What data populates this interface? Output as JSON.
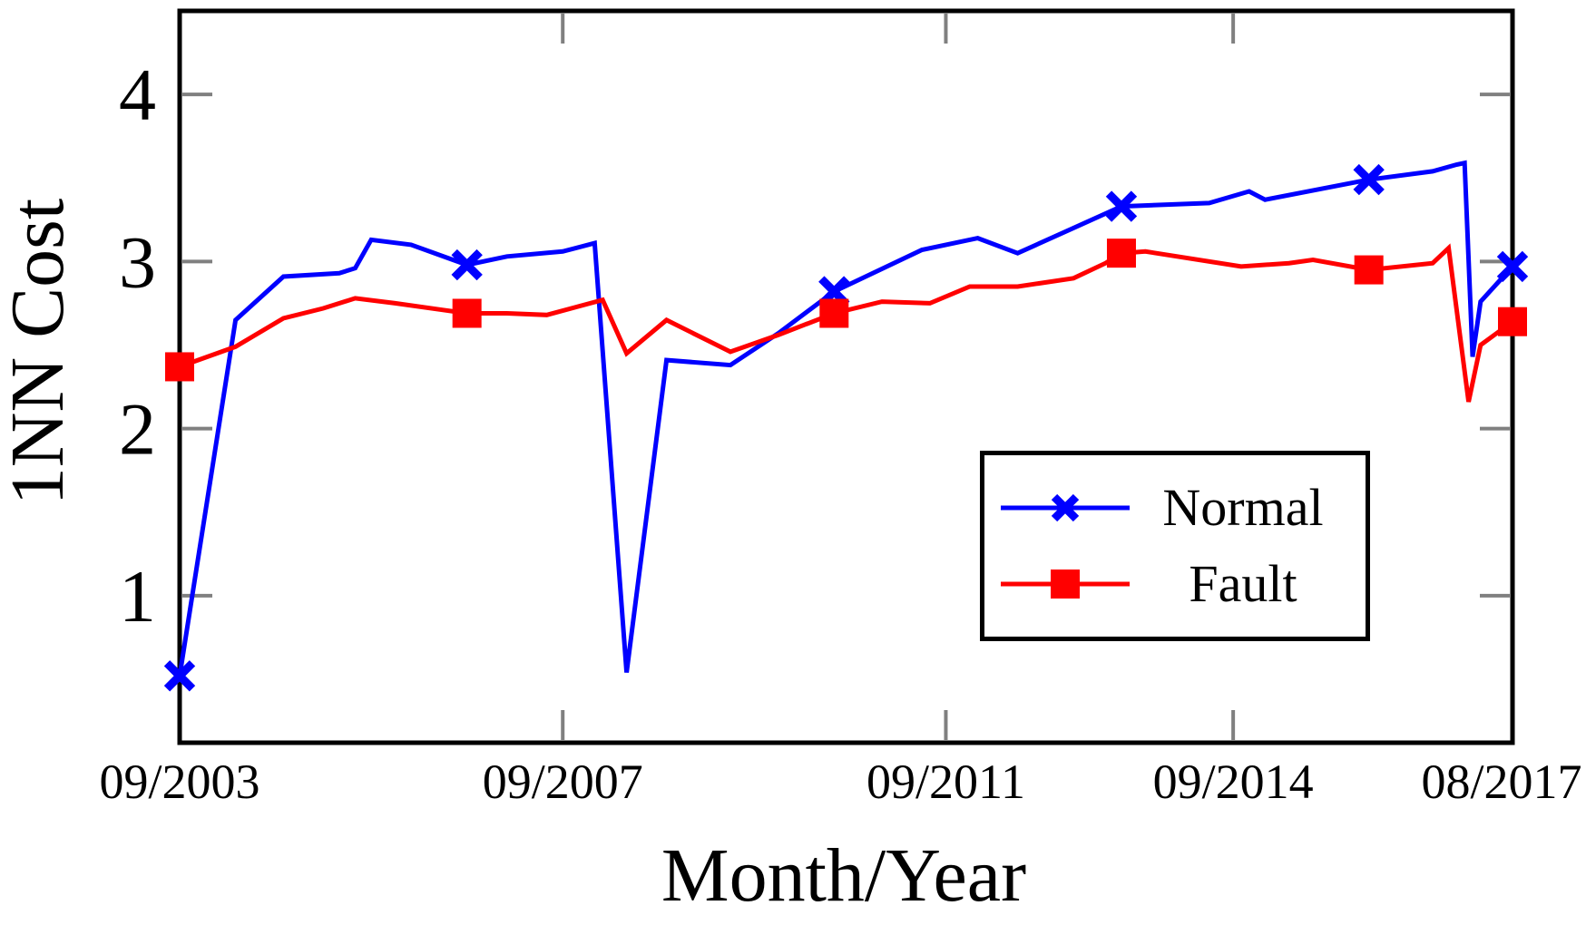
{
  "chart_data": {
    "type": "line",
    "title": "",
    "xlabel": "Month/Year",
    "ylabel": "1NN Cost",
    "x_unit": "months since 09/2003",
    "xlim": [
      0,
      167
    ],
    "ylim": [
      0.12,
      4.5
    ],
    "grid": false,
    "legend_position": "inside lower right",
    "frame_color": "#000000",
    "tick_color": "#808080",
    "x_ticks": [
      {
        "pos": 0,
        "label": "09/2003"
      },
      {
        "pos": 48,
        "label": "09/2007"
      },
      {
        "pos": 96,
        "label": "09/2011"
      },
      {
        "pos": 132,
        "label": "09/2014"
      },
      {
        "pos": 167,
        "label": "08/2017"
      }
    ],
    "y_ticks": [
      {
        "pos": 1,
        "label": "1"
      },
      {
        "pos": 2,
        "label": "2"
      },
      {
        "pos": 3,
        "label": "3"
      },
      {
        "pos": 4,
        "label": "4"
      }
    ],
    "series": [
      {
        "name": "Normal",
        "color": "#0000ff",
        "marker": "x",
        "marker_months": [
          0,
          36,
          82,
          118,
          149,
          167
        ],
        "points": [
          [
            0,
            0.52
          ],
          [
            7,
            2.65
          ],
          [
            13,
            2.91
          ],
          [
            20,
            2.93
          ],
          [
            22,
            2.96
          ],
          [
            24,
            3.13
          ],
          [
            29,
            3.1
          ],
          [
            36,
            2.98
          ],
          [
            41,
            3.03
          ],
          [
            48,
            3.06
          ],
          [
            52,
            3.11
          ],
          [
            56,
            0.54
          ],
          [
            61,
            2.41
          ],
          [
            69,
            2.38
          ],
          [
            75,
            2.57
          ],
          [
            82,
            2.82
          ],
          [
            93,
            3.07
          ],
          [
            100,
            3.14
          ],
          [
            105,
            3.05
          ],
          [
            118,
            3.33
          ],
          [
            129,
            3.35
          ],
          [
            134,
            3.42
          ],
          [
            136,
            3.37
          ],
          [
            149,
            3.49
          ],
          [
            157,
            3.54
          ],
          [
            160,
            3.58
          ],
          [
            161,
            3.59
          ],
          [
            162,
            2.43
          ],
          [
            163,
            2.76
          ],
          [
            167,
            2.97
          ]
        ]
      },
      {
        "name": "Fault",
        "color": "#ff0000",
        "marker": "square",
        "marker_months": [
          0,
          36,
          82,
          118,
          149,
          167
        ],
        "points": [
          [
            0,
            2.37
          ],
          [
            7,
            2.49
          ],
          [
            13,
            2.66
          ],
          [
            18,
            2.72
          ],
          [
            22,
            2.78
          ],
          [
            27,
            2.75
          ],
          [
            33,
            2.71
          ],
          [
            36,
            2.69
          ],
          [
            41,
            2.69
          ],
          [
            46,
            2.68
          ],
          [
            53,
            2.77
          ],
          [
            56,
            2.45
          ],
          [
            61,
            2.65
          ],
          [
            69,
            2.46
          ],
          [
            75,
            2.56
          ],
          [
            82,
            2.69
          ],
          [
            88,
            2.76
          ],
          [
            94,
            2.75
          ],
          [
            99,
            2.85
          ],
          [
            105,
            2.85
          ],
          [
            112,
            2.9
          ],
          [
            116,
            2.99
          ],
          [
            118,
            3.05
          ],
          [
            121,
            3.06
          ],
          [
            133,
            2.97
          ],
          [
            139,
            2.99
          ],
          [
            142,
            3.01
          ],
          [
            149,
            2.95
          ],
          [
            157,
            2.99
          ],
          [
            159,
            3.08
          ],
          [
            161.5,
            2.16
          ],
          [
            163,
            2.5
          ],
          [
            167,
            2.64
          ]
        ]
      }
    ]
  }
}
